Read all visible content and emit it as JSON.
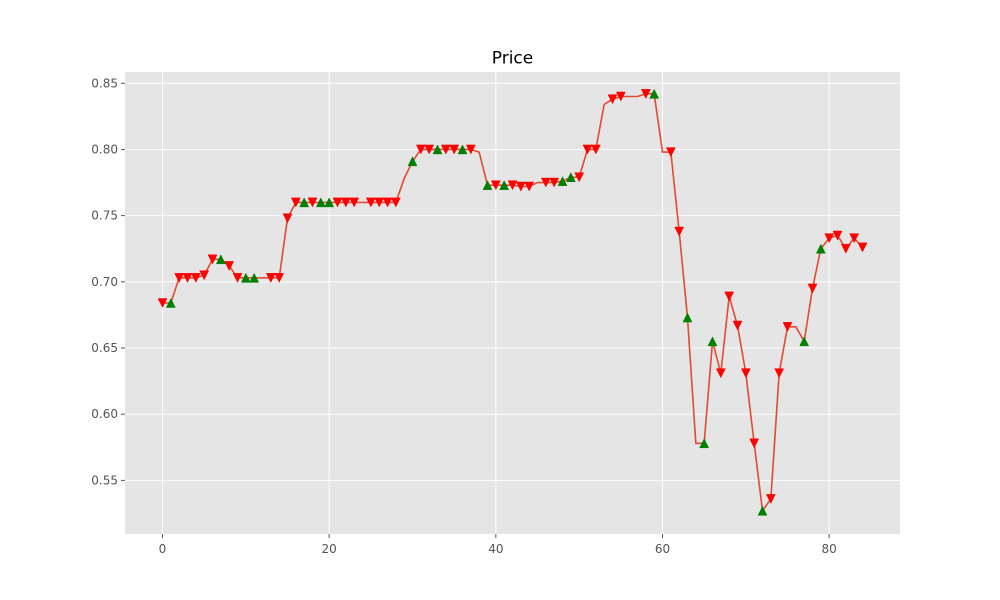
{
  "chart_data": {
    "type": "line",
    "title": "Price",
    "xlabel": "",
    "ylabel": "",
    "xlim": [
      -4.5,
      88.5
    ],
    "ylim": [
      0.5095,
      0.8585
    ],
    "xticks": [
      0,
      20,
      40,
      60,
      80
    ],
    "yticks": [
      0.55,
      0.6,
      0.65,
      0.7,
      0.75,
      0.8,
      0.85
    ],
    "ytick_labels": [
      "0.55",
      "0.60",
      "0.65",
      "0.70",
      "0.75",
      "0.80",
      "0.85"
    ],
    "grid": true,
    "colors": {
      "background": "#e5e5e5",
      "grid": "#ffffff",
      "line": "#e24a33",
      "sell_marker": "#ff0000",
      "buy_marker": "#008000"
    },
    "series": [
      {
        "values": [
          0.684,
          0.684,
          0.703,
          0.703,
          0.703,
          0.705,
          0.717,
          0.717,
          0.712,
          0.703,
          0.703,
          0.703,
          0.703,
          0.703,
          0.703,
          0.748,
          0.76,
          0.76,
          0.76,
          0.76,
          0.76,
          0.76,
          0.76,
          0.76,
          0.76,
          0.76,
          0.76,
          0.76,
          0.76,
          0.778,
          0.791,
          0.8,
          0.8,
          0.8,
          0.8,
          0.8,
          0.8,
          0.8,
          0.798,
          0.773,
          0.773,
          0.773,
          0.773,
          0.772,
          0.772,
          0.775,
          0.775,
          0.775,
          0.776,
          0.779,
          0.779,
          0.8,
          0.8,
          0.834,
          0.838,
          0.84,
          0.84,
          0.84,
          0.842,
          0.842,
          0.798,
          0.798,
          0.738,
          0.673,
          0.578,
          0.578,
          0.655,
          0.631,
          0.689,
          0.667,
          0.631,
          0.578,
          0.527,
          0.536,
          0.631,
          0.666,
          0.666,
          0.655,
          0.695,
          0.725,
          0.733,
          0.735,
          0.725,
          0.733,
          0.726
        ]
      }
    ],
    "sell_signals": [
      {
        "x": 0,
        "y": 0.684
      },
      {
        "x": 2,
        "y": 0.703
      },
      {
        "x": 3,
        "y": 0.703
      },
      {
        "x": 4,
        "y": 0.703
      },
      {
        "x": 5,
        "y": 0.705
      },
      {
        "x": 6,
        "y": 0.717
      },
      {
        "x": 8,
        "y": 0.712
      },
      {
        "x": 9,
        "y": 0.703
      },
      {
        "x": 13,
        "y": 0.703
      },
      {
        "x": 14,
        "y": 0.703
      },
      {
        "x": 15,
        "y": 0.748
      },
      {
        "x": 16,
        "y": 0.76
      },
      {
        "x": 18,
        "y": 0.76
      },
      {
        "x": 21,
        "y": 0.76
      },
      {
        "x": 22,
        "y": 0.76
      },
      {
        "x": 23,
        "y": 0.76
      },
      {
        "x": 25,
        "y": 0.76
      },
      {
        "x": 26,
        "y": 0.76
      },
      {
        "x": 27,
        "y": 0.76
      },
      {
        "x": 28,
        "y": 0.76
      },
      {
        "x": 31,
        "y": 0.8
      },
      {
        "x": 32,
        "y": 0.8
      },
      {
        "x": 34,
        "y": 0.8
      },
      {
        "x": 35,
        "y": 0.8
      },
      {
        "x": 37,
        "y": 0.8
      },
      {
        "x": 40,
        "y": 0.773
      },
      {
        "x": 42,
        "y": 0.773
      },
      {
        "x": 43,
        "y": 0.772
      },
      {
        "x": 44,
        "y": 0.772
      },
      {
        "x": 46,
        "y": 0.775
      },
      {
        "x": 47,
        "y": 0.775
      },
      {
        "x": 50,
        "y": 0.779
      },
      {
        "x": 51,
        "y": 0.8
      },
      {
        "x": 52,
        "y": 0.8
      },
      {
        "x": 54,
        "y": 0.838
      },
      {
        "x": 55,
        "y": 0.84
      },
      {
        "x": 58,
        "y": 0.842
      },
      {
        "x": 61,
        "y": 0.798
      },
      {
        "x": 62,
        "y": 0.738
      },
      {
        "x": 67,
        "y": 0.631
      },
      {
        "x": 68,
        "y": 0.689
      },
      {
        "x": 69,
        "y": 0.667
      },
      {
        "x": 70,
        "y": 0.631
      },
      {
        "x": 71,
        "y": 0.578
      },
      {
        "x": 73,
        "y": 0.536
      },
      {
        "x": 74,
        "y": 0.631
      },
      {
        "x": 75,
        "y": 0.666
      },
      {
        "x": 78,
        "y": 0.695
      },
      {
        "x": 80,
        "y": 0.733
      },
      {
        "x": 81,
        "y": 0.735
      },
      {
        "x": 82,
        "y": 0.725
      },
      {
        "x": 83,
        "y": 0.733
      },
      {
        "x": 84,
        "y": 0.726
      }
    ],
    "buy_signals": [
      {
        "x": 1,
        "y": 0.684
      },
      {
        "x": 7,
        "y": 0.717
      },
      {
        "x": 10,
        "y": 0.703
      },
      {
        "x": 11,
        "y": 0.703
      },
      {
        "x": 17,
        "y": 0.76
      },
      {
        "x": 19,
        "y": 0.76
      },
      {
        "x": 20,
        "y": 0.76
      },
      {
        "x": 30,
        "y": 0.791
      },
      {
        "x": 33,
        "y": 0.8
      },
      {
        "x": 36,
        "y": 0.8
      },
      {
        "x": 39,
        "y": 0.773
      },
      {
        "x": 41,
        "y": 0.773
      },
      {
        "x": 48,
        "y": 0.776
      },
      {
        "x": 49,
        "y": 0.779
      },
      {
        "x": 59,
        "y": 0.842
      },
      {
        "x": 63,
        "y": 0.673
      },
      {
        "x": 65,
        "y": 0.578
      },
      {
        "x": 66,
        "y": 0.655
      },
      {
        "x": 72,
        "y": 0.527
      },
      {
        "x": 77,
        "y": 0.655
      },
      {
        "x": 79,
        "y": 0.725
      }
    ]
  }
}
